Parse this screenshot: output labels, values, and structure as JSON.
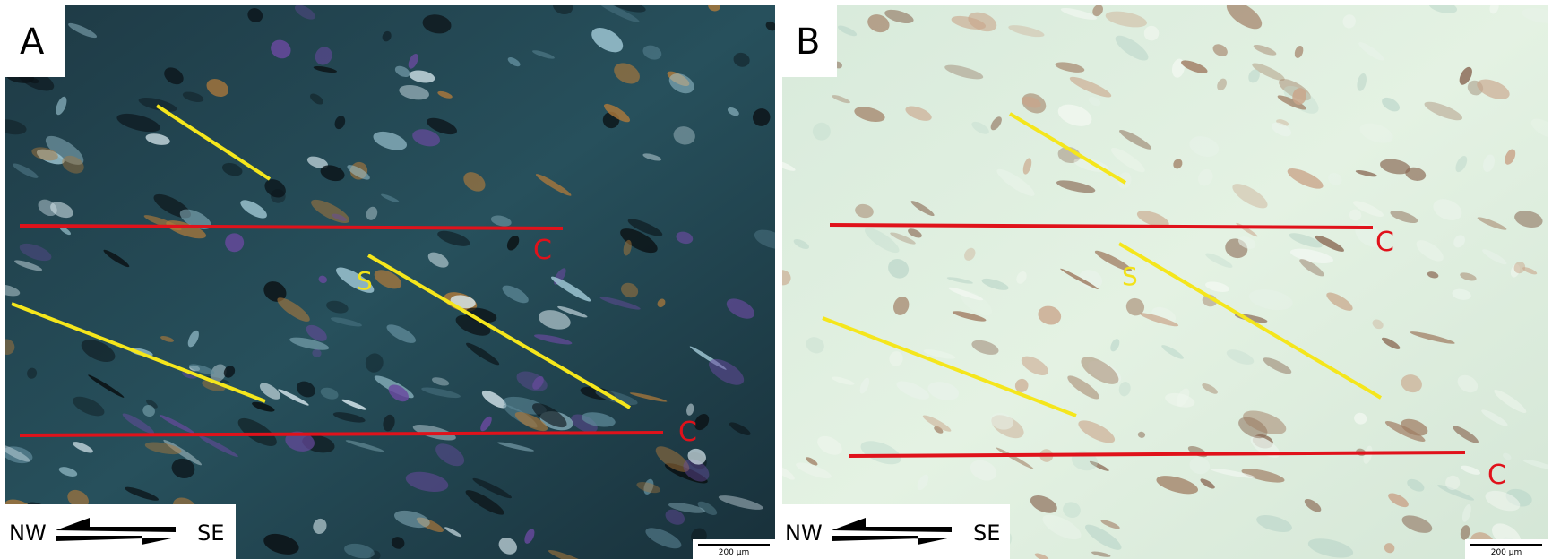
{
  "panels": [
    {
      "label": "A",
      "c_labels": [
        "C",
        "C"
      ],
      "s_label": "S",
      "shear": {
        "left": "NW",
        "right": "SE"
      },
      "scale_bar": "200 μm"
    },
    {
      "label": "B",
      "c_labels": [
        "C",
        "C"
      ],
      "s_label": "S",
      "shear": {
        "left": "NW",
        "right": "SE"
      },
      "scale_bar": "200 μm"
    }
  ]
}
